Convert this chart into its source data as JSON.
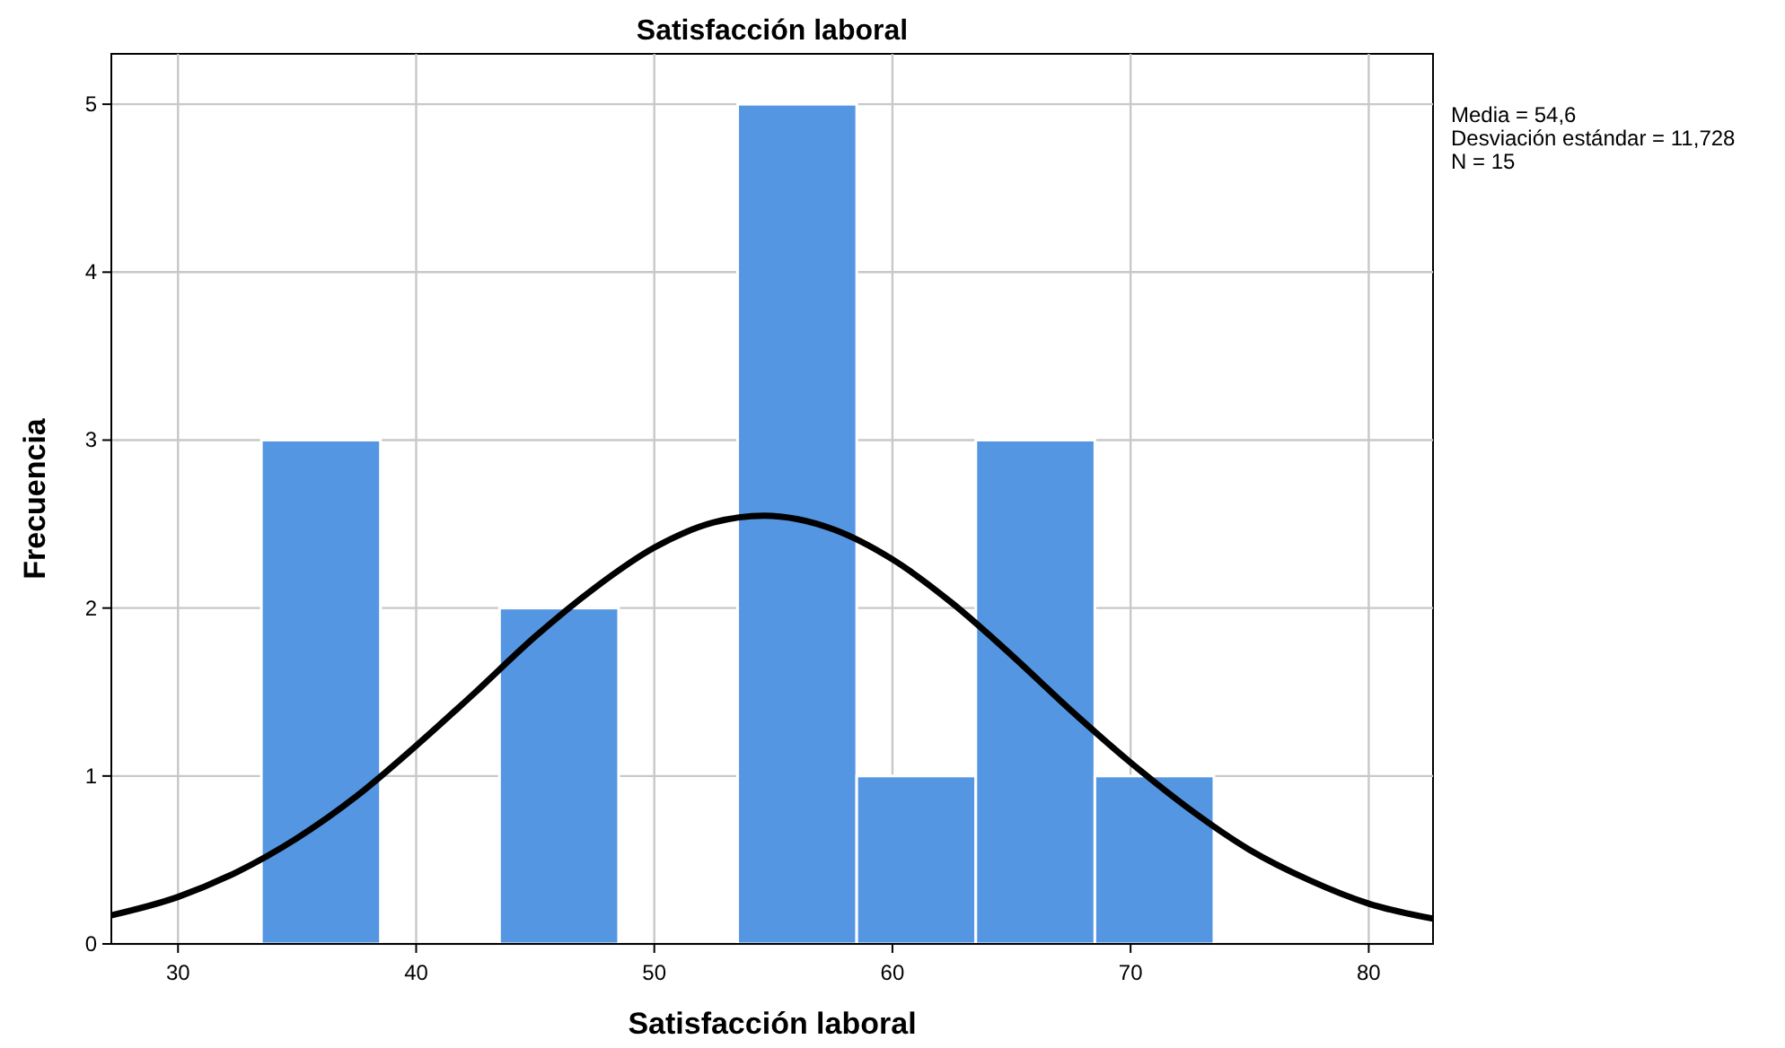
{
  "chart_data": {
    "type": "histogram",
    "title": "Satisfacción laboral",
    "xlabel": "Satisfacción laboral",
    "ylabel": "Frecuencia",
    "bins": [
      33.5,
      38.5,
      43.5,
      48.5,
      53.5,
      58.5,
      63.5,
      68.5,
      73.5
    ],
    "values": [
      3,
      0,
      2,
      0,
      5,
      1,
      3,
      1
    ],
    "color": "#5596e3",
    "series": [
      {
        "type": "line",
        "color": "#000000",
        "x": [
          27.2,
          30,
          32.5,
          35,
          37.5,
          40,
          42.5,
          45,
          47.5,
          50,
          52.5,
          54.6,
          57.5,
          60,
          62.5,
          65,
          67.5,
          70,
          72.5,
          75,
          77.5,
          80,
          82.7
        ],
        "values": [
          0.17,
          0.28,
          0.43,
          0.63,
          0.88,
          1.18,
          1.5,
          1.83,
          2.12,
          2.36,
          2.51,
          2.55,
          2.47,
          2.29,
          2.03,
          1.72,
          1.39,
          1.08,
          0.8,
          0.56,
          0.38,
          0.24,
          0.15
        ]
      }
    ],
    "xlim": [
      27.2,
      82.7
    ],
    "xticks": [
      30,
      40,
      50,
      60,
      70,
      80
    ],
    "ylim": [
      0,
      5.3
    ],
    "yticks": [
      0,
      1,
      2,
      3,
      4,
      5
    ],
    "grid": true,
    "annotations": [
      "Media = 54,6",
      "Desviación estándar = 11,728",
      "N = 15"
    ]
  }
}
